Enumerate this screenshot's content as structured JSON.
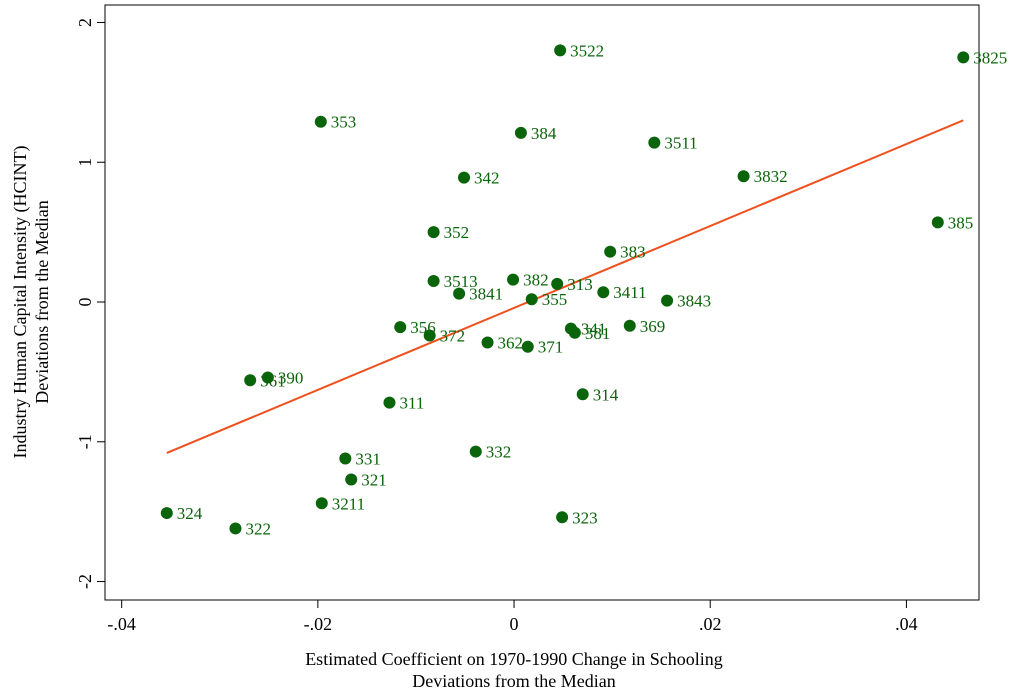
{
  "chart_data": {
    "type": "scatter",
    "xlabel": [
      "Estimated Coefficient on 1970-1990 Change in Schooling",
      "Deviations from the Median"
    ],
    "ylabel": [
      "Industry Human Capital Intensity (HCINT)",
      "Deviations from the Median"
    ],
    "xlim": [
      -0.0417,
      0.0474
    ],
    "ylim": [
      -2.132,
      2.125
    ],
    "xticks": [
      {
        "value": -0.04,
        "label": "-.04"
      },
      {
        "value": -0.02,
        "label": "-.02"
      },
      0,
      {
        "value": 0.02,
        "label": ".02"
      },
      {
        "value": 0.04,
        "label": ".04"
      }
    ],
    "yticks": [
      -2,
      -1,
      0,
      1,
      2
    ],
    "color": "#0a640a",
    "label_color": "#0a640a",
    "labels": [
      "3522",
      "3825",
      "353",
      "384",
      "3511",
      "342",
      "3832",
      "352",
      "385",
      "383",
      "3513",
      "382",
      "313",
      "3841",
      "3411",
      "355",
      "3843",
      "356",
      "372",
      "341",
      "381",
      "369",
      "362",
      "371",
      "361",
      "390",
      "311",
      "314",
      "332",
      "331",
      "321",
      "3211",
      "324",
      "322",
      "323"
    ],
    "x": [
      0.0047,
      0.0458,
      -0.0197,
      0.0007,
      0.0143,
      -0.0051,
      0.0234,
      -0.0082,
      0.0432,
      0.0098,
      -0.0082,
      -0.0001,
      0.0044,
      -0.0056,
      0.0091,
      0.0018,
      0.0156,
      -0.0116,
      -0.0086,
      0.0058,
      0.0062,
      0.0118,
      -0.0027,
      0.0014,
      -0.0269,
      -0.0251,
      -0.0127,
      0.007,
      -0.0039,
      -0.0172,
      -0.0166,
      -0.0196,
      -0.0354,
      -0.0284,
      0.0049
    ],
    "y": [
      1.8,
      1.75,
      1.29,
      1.21,
      1.14,
      0.89,
      0.9,
      0.5,
      0.57,
      0.36,
      0.15,
      0.16,
      0.13,
      0.06,
      0.07,
      0.02,
      0.01,
      -0.18,
      -0.24,
      -0.19,
      -0.22,
      -0.17,
      -0.29,
      -0.32,
      -0.56,
      -0.54,
      -0.72,
      -0.66,
      -1.07,
      -1.12,
      -1.27,
      -1.44,
      -1.51,
      -1.62,
      -1.54
    ],
    "fit": {
      "x": [
        -0.0354,
        0.0458
      ],
      "y": [
        -1.08,
        1.3
      ],
      "color": "#f0501e"
    }
  }
}
